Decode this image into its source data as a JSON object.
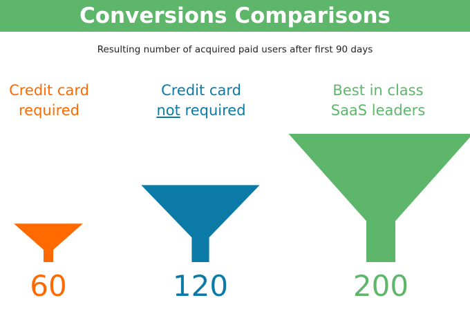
{
  "header": {
    "title": "Conversions Comparisons",
    "bar_color": "#5db66a"
  },
  "subtitle": "Resulting number of acquired paid users after first 90 days",
  "chart_data": {
    "type": "bar",
    "title": "Conversions Comparisons",
    "subtitle": "Resulting number of acquired paid users after first 90 days",
    "categories": [
      "Credit card required",
      "Credit card not required",
      "Best in class SaaS leaders"
    ],
    "values": [
      60,
      120,
      200
    ],
    "colors": [
      "#ff6a00",
      "#0c7aa6",
      "#5db66a"
    ],
    "groups": [
      {
        "label_line1_parts": [
          {
            "text": "Credit card",
            "underline": false
          }
        ],
        "label_line2_parts": [
          {
            "text": "required",
            "underline": false
          }
        ],
        "value": 60,
        "color": "#ff6a00"
      },
      {
        "label_line1_parts": [
          {
            "text": "Credit card",
            "underline": false
          }
        ],
        "label_line2_parts": [
          {
            "text": "not",
            "underline": true
          },
          {
            "text": " required",
            "underline": false
          }
        ],
        "value": 120,
        "color": "#0c7aa6"
      },
      {
        "label_line1_parts": [
          {
            "text": "Best in class",
            "underline": false
          }
        ],
        "label_line2_parts": [
          {
            "text": "SaaS leaders",
            "underline": false
          }
        ],
        "value": 200,
        "color": "#5db66a"
      }
    ],
    "legend": "none",
    "grid": false
  }
}
